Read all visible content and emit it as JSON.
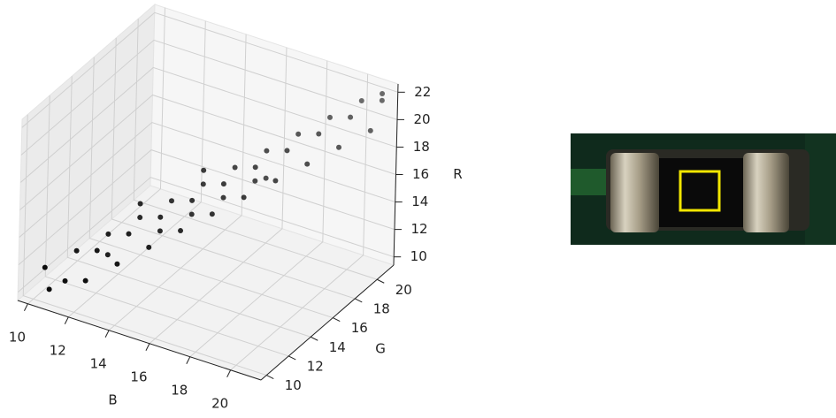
{
  "chart_data": {
    "type": "scatter3d",
    "xlabel": "B",
    "ylabel": "G",
    "zlabel": "R",
    "xlim": [
      9.5,
      21.5
    ],
    "ylim": [
      9.5,
      21.5
    ],
    "zlim": [
      9.4,
      22.6
    ],
    "xticks": [
      10,
      12,
      14,
      16,
      18,
      20
    ],
    "yticks": [
      10,
      12,
      14,
      16,
      18,
      20
    ],
    "zticks": [
      10,
      12,
      14,
      16,
      18,
      20,
      22
    ],
    "grid": true,
    "color": "#000000",
    "x": [
      10,
      10.5,
      11,
      11,
      12,
      12,
      12,
      13,
      13,
      13,
      14,
      14,
      14,
      14,
      15,
      15,
      15,
      15,
      16,
      16,
      16,
      16,
      17,
      17,
      17,
      17,
      18,
      18,
      18,
      19,
      19,
      19,
      20,
      20,
      20,
      21,
      21,
      21,
      15,
      13,
      17,
      12
    ],
    "y": [
      11,
      10.5,
      11,
      12,
      11,
      12,
      13,
      12,
      13,
      14,
      13,
      14,
      14,
      15,
      14,
      15,
      15,
      16,
      15,
      16,
      16,
      17,
      16,
      17,
      17,
      18,
      17,
      18,
      19,
      18,
      19,
      20,
      19,
      20,
      21,
      20,
      21,
      21,
      16,
      14,
      18,
      13
    ],
    "z": [
      11,
      10,
      10.5,
      12,
      11,
      12.5,
      13,
      12,
      13.5,
      14,
      13,
      14.5,
      13.5,
      15,
      14,
      15.5,
      14.5,
      16,
      15,
      16.5,
      15.5,
      17,
      16,
      17.5,
      16.5,
      18,
      17,
      18.5,
      19,
      18,
      19.5,
      20,
      19,
      20.5,
      21,
      20,
      21.5,
      22,
      17,
      15,
      16,
      11.5
    ]
  }
}
